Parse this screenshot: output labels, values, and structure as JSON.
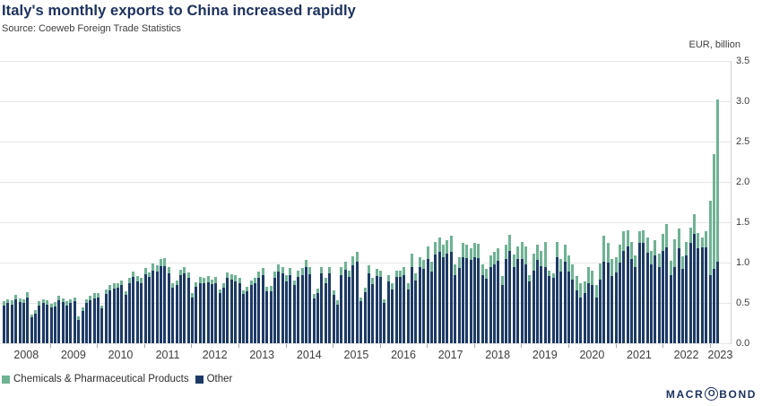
{
  "header": {
    "title": "Italy's monthly exports to China increased rapidly",
    "source": "Source: Coeweb Foreign Trade Statistics"
  },
  "axis": {
    "unit_label": "EUR, billion",
    "y_ticks": [
      "0.0",
      "0.5",
      "1.0",
      "1.5",
      "2.0",
      "2.5",
      "3.0",
      "3.5"
    ],
    "x_ticks": [
      "2008",
      "2009",
      "2010",
      "2011",
      "2012",
      "2013",
      "2014",
      "2015",
      "2016",
      "2017",
      "2018",
      "2019",
      "2020",
      "2021",
      "2022",
      "2023"
    ]
  },
  "legend": [
    {
      "label": "Chemicals & Pharmaceutical Products",
      "color": "#6fb294"
    },
    {
      "label": "Other",
      "color": "#1d3a64"
    }
  ],
  "footer": {
    "logo_prefix": "MACR",
    "logo_o": "O",
    "logo_suffix": "BOND"
  },
  "colors": {
    "chemicals": "#6fb294",
    "other": "#1d3a64",
    "gridline": "#e6e6e6",
    "axis_line": "#d2d2d2",
    "text_navy": "#1d3160",
    "text_gray": "#3d3d3d"
  },
  "chart_data": {
    "type": "bar",
    "stacked": true,
    "title": "Italy's monthly exports to China increased rapidly",
    "ylabel": "EUR, billion",
    "ylim": [
      0,
      3.5
    ],
    "grid": true,
    "legend_position": "bottom-left",
    "x_monthly_start": "2008-01",
    "x_monthly_end": "2023-03",
    "series": [
      {
        "name": "Chemicals & Pharmaceutical Products",
        "color": "#6fb294",
        "values": [
          0.05,
          0.05,
          0.05,
          0.06,
          0.05,
          0.05,
          0.06,
          0.04,
          0.04,
          0.05,
          0.05,
          0.05,
          0.04,
          0.05,
          0.06,
          0.05,
          0.05,
          0.05,
          0.05,
          0.04,
          0.04,
          0.05,
          0.06,
          0.06,
          0.05,
          0.04,
          0.06,
          0.06,
          0.06,
          0.06,
          0.06,
          0.05,
          0.06,
          0.07,
          0.06,
          0.06,
          0.07,
          0.06,
          0.09,
          0.08,
          0.08,
          0.1,
          0.08,
          0.06,
          0.06,
          0.07,
          0.08,
          0.07,
          0.05,
          0.06,
          0.07,
          0.07,
          0.07,
          0.06,
          0.07,
          0.05,
          0.06,
          0.07,
          0.07,
          0.07,
          0.07,
          0.05,
          0.06,
          0.06,
          0.07,
          0.08,
          0.08,
          0.06,
          0.06,
          0.08,
          0.09,
          0.08,
          0.07,
          0.08,
          0.06,
          0.08,
          0.08,
          0.09,
          0.08,
          0.05,
          0.06,
          0.08,
          0.07,
          0.08,
          0.06,
          0.05,
          0.09,
          0.1,
          0.08,
          0.11,
          0.12,
          0.05,
          0.06,
          0.1,
          0.08,
          0.09,
          0.08,
          0.05,
          0.08,
          0.07,
          0.08,
          0.08,
          0.09,
          0.07,
          0.17,
          0.09,
          0.12,
          0.11,
          0.15,
          0.12,
          0.16,
          0.18,
          0.15,
          0.17,
          0.2,
          0.13,
          0.14,
          0.17,
          0.16,
          0.15,
          0.17,
          0.17,
          0.13,
          0.12,
          0.15,
          0.15,
          0.16,
          0.11,
          0.17,
          0.2,
          0.15,
          0.16,
          0.22,
          0.22,
          0.08,
          0.21,
          0.19,
          0.18,
          0.32,
          0.07,
          0.06,
          0.19,
          0.16,
          0.21,
          0.2,
          0.19,
          0.17,
          0.17,
          0.15,
          0.2,
          0.18,
          0.15,
          0.2,
          0.32,
          0.25,
          0.22,
          0.19,
          0.22,
          0.25,
          0.2,
          0.22,
          0.15,
          0.15,
          0.15,
          0.19,
          0.16,
          0.19,
          0.17,
          0.21,
          0.29,
          0.18,
          0.35,
          0.24,
          0.16,
          0.17,
          0.19,
          0.24,
          0.19,
          0.12,
          0.2,
          0.93,
          1.42,
          2.01
        ]
      },
      {
        "name": "Other",
        "color": "#1d3a64",
        "values": [
          0.47,
          0.5,
          0.48,
          0.54,
          0.51,
          0.5,
          0.57,
          0.32,
          0.37,
          0.47,
          0.5,
          0.48,
          0.45,
          0.46,
          0.53,
          0.51,
          0.47,
          0.5,
          0.52,
          0.29,
          0.4,
          0.5,
          0.53,
          0.56,
          0.57,
          0.43,
          0.61,
          0.66,
          0.68,
          0.69,
          0.72,
          0.6,
          0.75,
          0.82,
          0.77,
          0.75,
          0.86,
          0.82,
          0.9,
          0.89,
          0.96,
          0.96,
          0.87,
          0.69,
          0.72,
          0.84,
          0.87,
          0.81,
          0.57,
          0.7,
          0.75,
          0.74,
          0.76,
          0.73,
          0.75,
          0.62,
          0.69,
          0.81,
          0.79,
          0.77,
          0.74,
          0.61,
          0.64,
          0.72,
          0.74,
          0.81,
          0.85,
          0.64,
          0.65,
          0.81,
          0.89,
          0.87,
          0.77,
          0.85,
          0.72,
          0.82,
          0.85,
          0.94,
          0.86,
          0.56,
          0.62,
          0.87,
          0.74,
          0.87,
          0.6,
          0.48,
          0.85,
          0.91,
          0.82,
          0.97,
          1.01,
          0.52,
          0.63,
          0.87,
          0.73,
          0.83,
          0.82,
          0.5,
          0.77,
          0.67,
          0.82,
          0.82,
          0.85,
          0.67,
          0.94,
          0.78,
          0.95,
          0.92,
          1.05,
          0.89,
          1.1,
          1.13,
          1.07,
          1.11,
          1.13,
          0.85,
          0.93,
          1.07,
          1.06,
          1.03,
          1.07,
          1.06,
          0.85,
          0.8,
          0.94,
          0.98,
          1.02,
          0.72,
          1.05,
          1.15,
          0.95,
          1.04,
          1.04,
          0.98,
          0.77,
          0.9,
          1.03,
          0.96,
          0.94,
          0.83,
          0.81,
          1.07,
          0.89,
          1.01,
          0.89,
          0.79,
          0.66,
          0.57,
          0.62,
          0.74,
          0.72,
          0.57,
          0.79,
          1.01,
          1.0,
          0.83,
          0.88,
          1.0,
          1.14,
          1.2,
          1.04,
          0.94,
          1.24,
          1.25,
          1.12,
          0.98,
          1.09,
          0.94,
          1.15,
          1.19,
          0.84,
          0.94,
          1.18,
          0.92,
          1.09,
          1.24,
          1.36,
          1.18,
          1.19,
          1.19,
          0.84,
          0.92,
          1.01
        ]
      }
    ]
  }
}
